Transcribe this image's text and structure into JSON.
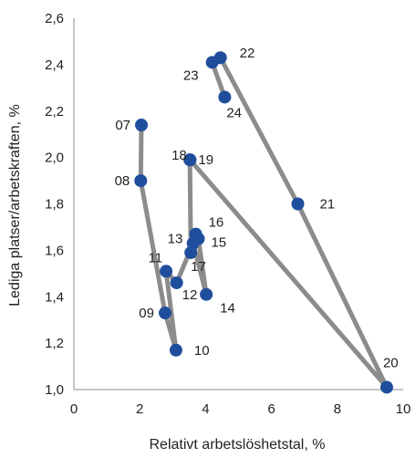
{
  "chart_data": {
    "type": "line",
    "title": "",
    "xlabel": "Relativt arbetslöshetstal, %",
    "ylabel": "Lediga platser/arbetskraften, %",
    "xlim": [
      0,
      10
    ],
    "ylim": [
      1.0,
      2.6
    ],
    "xticks": [
      0,
      2,
      4,
      6,
      8,
      10
    ],
    "yticks": [
      "1,0",
      "1,2",
      "1,4",
      "1,6",
      "1,8",
      "2,0",
      "2,2",
      "2,4",
      "2,6"
    ],
    "grid": false,
    "line_color": "#8c8c8c",
    "marker_color": "#1f4e9c",
    "points": [
      {
        "label": "07",
        "x": 2.05,
        "y": 2.14
      },
      {
        "label": "08",
        "x": 2.03,
        "y": 1.9
      },
      {
        "label": "09",
        "x": 2.77,
        "y": 1.33
      },
      {
        "label": "10",
        "x": 3.1,
        "y": 1.17
      },
      {
        "label": "11",
        "x": 2.8,
        "y": 1.51
      },
      {
        "label": "12",
        "x": 3.12,
        "y": 1.46
      },
      {
        "label": "13",
        "x": 3.62,
        "y": 1.63
      },
      {
        "label": "14",
        "x": 4.02,
        "y": 1.41
      },
      {
        "label": "15",
        "x": 3.78,
        "y": 1.65
      },
      {
        "label": "16",
        "x": 3.7,
        "y": 1.67
      },
      {
        "label": "17",
        "x": 3.55,
        "y": 1.59
      },
      {
        "label": "18",
        "x": 3.52,
        "y": 1.99
      },
      {
        "label": "19",
        "x": 3.53,
        "y": 1.99
      },
      {
        "label": "20",
        "x": 9.5,
        "y": 1.01
      },
      {
        "label": "21",
        "x": 6.8,
        "y": 1.8
      },
      {
        "label": "22",
        "x": 4.45,
        "y": 2.43
      },
      {
        "label": "23",
        "x": 4.2,
        "y": 2.41
      },
      {
        "label": "24",
        "x": 4.58,
        "y": 2.26
      }
    ]
  }
}
